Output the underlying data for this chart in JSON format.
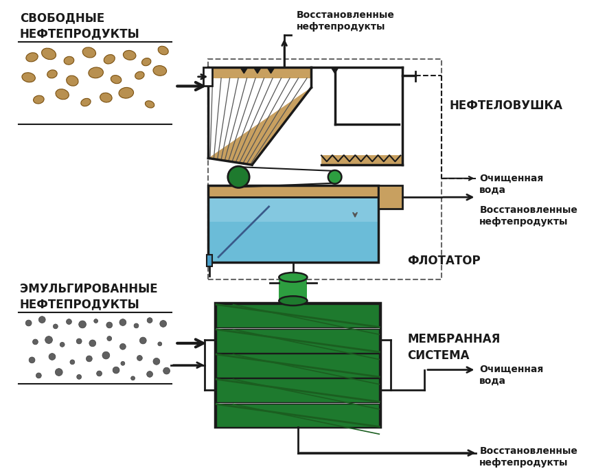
{
  "bg_color": "#ffffff",
  "sand_color": "#c8a060",
  "blue_light": "#6bbcd8",
  "blue_lighter": "#9dd4e8",
  "green_dark": "#1e7a2e",
  "green_med": "#2d9e40",
  "black": "#1a1a1a",
  "gray_dash": "#666666",
  "label_svobodnye": "СВОБОДНЫЕ\nНЕФТЕПРОДУКТЫ",
  "label_emulgirovannye": "ЭМУЛЬГИРОВАННЫЕ\nНЕФТЕПРОДУКТЫ",
  "title_neft": "НЕФТЕЛОВУШКА",
  "title_flot": "ФЛОТАТОР",
  "title_memb": "МЕМБРАННАЯ\nСИСТЕМА",
  "label_vosst_top": "Восстановленные\nнефтепродукты",
  "label_ochist1": "Очищенная\nвода",
  "label_vosst2": "Восстановленные\nнефтепродукты",
  "label_ochist2": "Очищенная\nвода",
  "label_vosst3": "Восстановленные\nнефтепродукты"
}
